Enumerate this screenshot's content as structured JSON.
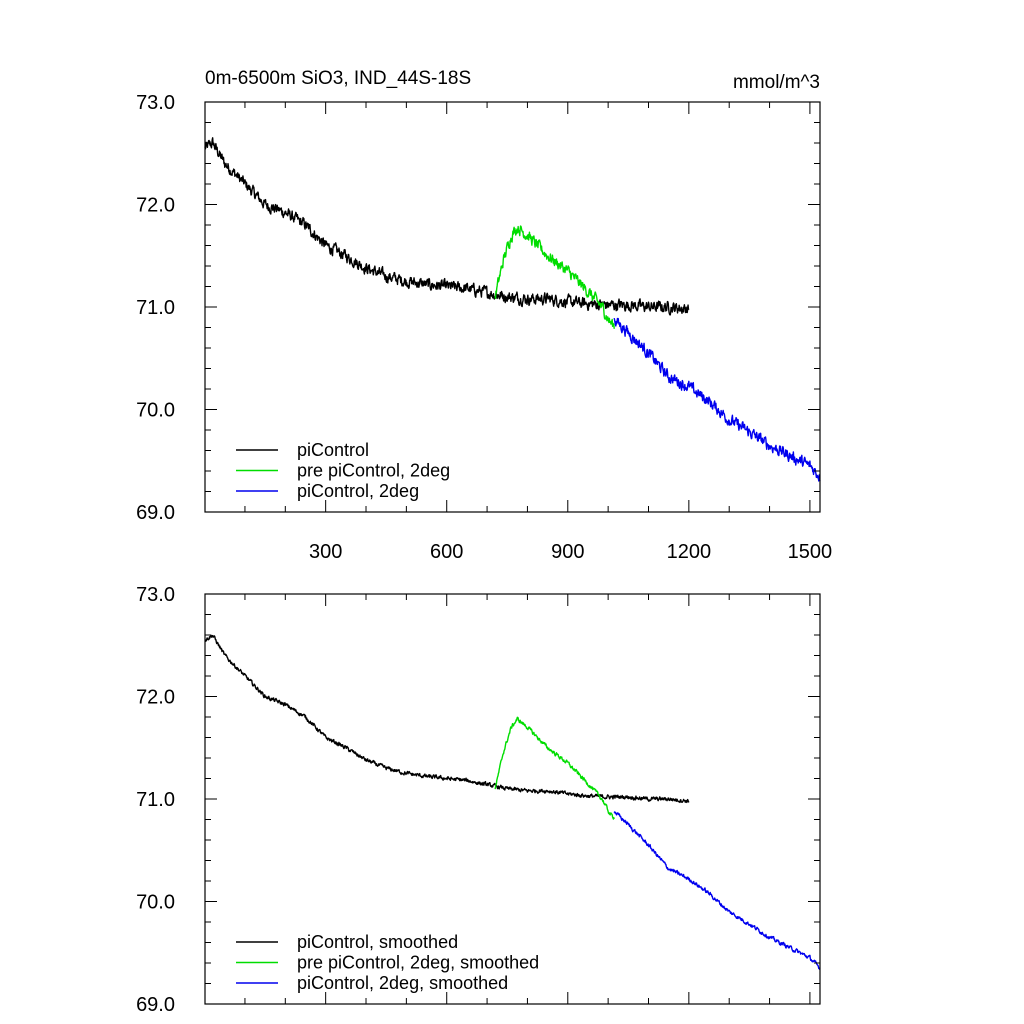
{
  "chart_data": [
    {
      "type": "line",
      "title": "0m-6500m SiO3, IND_44S-18S",
      "units": "mmol/m^3",
      "xlim": [
        1,
        1525
      ],
      "ylim": [
        69.0,
        73.0
      ],
      "xticks": [
        300,
        600,
        900,
        1200,
        1500
      ],
      "xtick_labels": [
        "300",
        "600",
        "900",
        "1200",
        "1500"
      ],
      "yticks": [
        69,
        70,
        71,
        72,
        73
      ],
      "ytick_labels": [
        "69.0",
        "70.0",
        "71.0",
        "72.0",
        "73.0"
      ],
      "legend_position": "bottom-left",
      "series": [
        {
          "name": "piControl",
          "color": "#000000",
          "noise": 0.1,
          "x": [
            1,
            20,
            50,
            100,
            150,
            200,
            250,
            300,
            350,
            400,
            450,
            500,
            550,
            600,
            650,
            700,
            750,
            800,
            850,
            900,
            950,
            1000,
            1050,
            1100,
            1150,
            1200
          ],
          "values": [
            72.55,
            72.6,
            72.4,
            72.2,
            72.0,
            71.92,
            71.8,
            71.6,
            71.5,
            71.38,
            71.3,
            71.25,
            71.22,
            71.2,
            71.18,
            71.14,
            71.1,
            71.08,
            71.08,
            71.05,
            71.03,
            71.02,
            71.02,
            71.0,
            71.0,
            70.98
          ]
        },
        {
          "name": "pre piControl, 2deg",
          "color": "#00dd00",
          "noise": 0.1,
          "x": [
            720,
            740,
            760,
            775,
            800,
            850,
            900,
            950,
            985,
            1005,
            1015
          ],
          "values": [
            71.1,
            71.45,
            71.7,
            71.78,
            71.7,
            71.5,
            71.35,
            71.15,
            71.0,
            70.85,
            70.82
          ]
        },
        {
          "name": "piControl, 2deg",
          "color": "#0000ee",
          "noise": 0.1,
          "x": [
            1015,
            1050,
            1100,
            1150,
            1200,
            1250,
            1300,
            1350,
            1400,
            1450,
            1500,
            1525
          ],
          "values": [
            70.88,
            70.75,
            70.55,
            70.32,
            70.22,
            70.08,
            69.9,
            69.78,
            69.65,
            69.55,
            69.45,
            69.35
          ]
        }
      ]
    },
    {
      "type": "line",
      "title": "",
      "units": "",
      "xlim": [
        1,
        1525
      ],
      "ylim": [
        69.0,
        73.0
      ],
      "xticks": [
        300,
        600,
        900,
        1200,
        1500
      ],
      "yticks": [
        69,
        70,
        71,
        72,
        73
      ],
      "ytick_labels": [
        "69.0",
        "70.0",
        "71.0",
        "72.0",
        "73.0"
      ],
      "legend_position": "bottom-left",
      "series": [
        {
          "name": "piControl, smoothed",
          "color": "#000000",
          "noise": 0.035,
          "x": [
            1,
            20,
            50,
            100,
            150,
            200,
            250,
            300,
            350,
            400,
            450,
            500,
            550,
            600,
            650,
            700,
            750,
            800,
            850,
            900,
            950,
            1000,
            1050,
            1100,
            1150,
            1200
          ],
          "values": [
            72.55,
            72.6,
            72.4,
            72.2,
            72.0,
            71.92,
            71.8,
            71.6,
            71.5,
            71.38,
            71.3,
            71.25,
            71.22,
            71.2,
            71.18,
            71.14,
            71.1,
            71.08,
            71.08,
            71.05,
            71.03,
            71.02,
            71.02,
            71.0,
            71.0,
            70.98
          ]
        },
        {
          "name": "pre piControl, 2deg, smoothed",
          "color": "#00dd00",
          "noise": 0.035,
          "x": [
            720,
            740,
            760,
            775,
            800,
            850,
            900,
            950,
            985,
            1005,
            1015
          ],
          "values": [
            71.1,
            71.45,
            71.7,
            71.78,
            71.7,
            71.5,
            71.35,
            71.15,
            71.0,
            70.85,
            70.82
          ]
        },
        {
          "name": "piControl, 2deg, smoothed",
          "color": "#0000ee",
          "noise": 0.035,
          "x": [
            1015,
            1050,
            1100,
            1150,
            1200,
            1250,
            1300,
            1350,
            1400,
            1450,
            1500,
            1525
          ],
          "values": [
            70.88,
            70.75,
            70.55,
            70.32,
            70.22,
            70.08,
            69.9,
            69.78,
            69.65,
            69.55,
            69.45,
            69.35
          ]
        }
      ]
    }
  ]
}
